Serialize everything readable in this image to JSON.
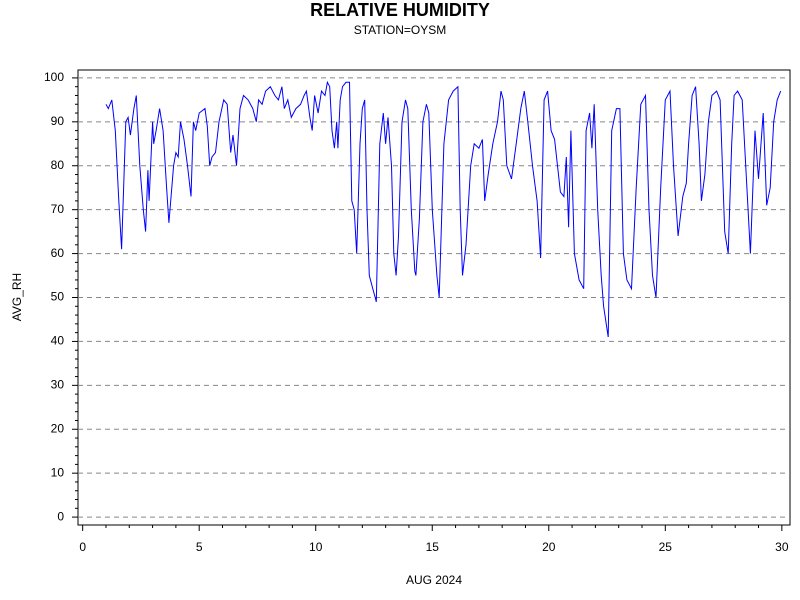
{
  "chart_data": {
    "type": "line",
    "title": "RELATIVE HUMIDITY",
    "subtitle": "STATION=OYSM",
    "x_label": "AUG 2024",
    "y_label": "AVG_RH",
    "xlim": [
      -0.2,
      30.35
    ],
    "ylim": [
      -1.8,
      101.8
    ],
    "xticks": [
      0,
      5,
      10,
      15,
      20,
      25,
      30
    ],
    "yticks": [
      0,
      10,
      20,
      30,
      40,
      50,
      60,
      70,
      80,
      90,
      100
    ],
    "xminorticks": [
      1,
      2,
      3,
      4,
      6,
      7,
      8,
      9,
      11,
      12,
      13,
      14,
      16,
      17,
      18,
      19,
      21,
      22,
      23,
      24,
      26,
      27,
      28,
      29
    ],
    "yminorticks": [
      2,
      4,
      6,
      8,
      12,
      14,
      16,
      18,
      22,
      24,
      26,
      28,
      32,
      34,
      36,
      38,
      42,
      44,
      46,
      48,
      52,
      54,
      56,
      58,
      62,
      64,
      66,
      68,
      72,
      74,
      76,
      78,
      82,
      84,
      86,
      88,
      92,
      94,
      96,
      98
    ],
    "grid": true,
    "series": [
      {
        "name": "AVG_RH",
        "color": "#0000ff",
        "x": [
          1.0,
          1.1,
          1.25,
          1.4,
          1.55,
          1.67,
          1.85,
          1.95,
          2.05,
          2.2,
          2.3,
          2.45,
          2.6,
          2.7,
          2.8,
          2.85,
          3.0,
          3.05,
          3.15,
          3.3,
          3.45,
          3.6,
          3.7,
          3.9,
          4.0,
          4.1,
          4.2,
          4.35,
          4.5,
          4.65,
          4.75,
          4.85,
          5.0,
          5.25,
          5.35,
          5.45,
          5.55,
          5.7,
          5.85,
          6.05,
          6.2,
          6.35,
          6.45,
          6.6,
          6.75,
          6.9,
          7.1,
          7.3,
          7.45,
          7.55,
          7.7,
          7.85,
          8.05,
          8.25,
          8.4,
          8.55,
          8.65,
          8.8,
          8.95,
          9.15,
          9.35,
          9.5,
          9.6,
          9.75,
          9.85,
          9.95,
          10.1,
          10.25,
          10.4,
          10.5,
          10.6,
          10.7,
          10.8,
          10.9,
          10.95,
          11.05,
          11.15,
          11.3,
          11.45,
          11.55,
          11.65,
          11.76,
          11.9,
          12.0,
          12.1,
          12.2,
          12.3,
          12.45,
          12.55,
          12.6,
          12.75,
          12.9,
          13.0,
          13.1,
          13.25,
          13.35,
          13.45,
          13.55,
          13.7,
          13.85,
          13.95,
          14.1,
          14.25,
          14.3,
          14.45,
          14.6,
          14.75,
          14.85,
          15.0,
          15.2,
          15.3,
          15.5,
          15.7,
          15.9,
          16.1,
          16.2,
          16.3,
          16.45,
          16.65,
          16.8,
          17.0,
          17.15,
          17.25,
          17.4,
          17.6,
          17.8,
          17.95,
          18.05,
          18.2,
          18.4,
          18.6,
          18.8,
          18.95,
          19.1,
          19.3,
          19.5,
          19.65,
          19.8,
          19.95,
          20.1,
          20.25,
          20.5,
          20.65,
          20.75,
          20.85,
          20.95,
          21.1,
          21.3,
          21.5,
          21.6,
          21.75,
          21.85,
          21.95,
          22.1,
          22.25,
          22.35,
          22.55,
          22.7,
          22.9,
          23.05,
          23.2,
          23.35,
          23.55,
          23.75,
          23.95,
          24.15,
          24.3,
          24.45,
          24.6,
          24.8,
          25.0,
          25.2,
          25.35,
          25.55,
          25.75,
          25.9,
          26.0,
          26.15,
          26.3,
          26.45,
          26.55,
          26.7,
          26.85,
          27.0,
          27.2,
          27.35,
          27.55,
          27.7,
          27.85,
          27.95,
          28.1,
          28.3,
          28.5,
          28.65,
          28.85,
          29.0,
          29.2,
          29.35,
          29.5,
          29.65,
          29.8,
          29.95
        ],
        "values": [
          94,
          93,
          95,
          88,
          72,
          61,
          90,
          91,
          87,
          93,
          96,
          80,
          70,
          65,
          79,
          72,
          90,
          85,
          88,
          93,
          88,
          75,
          67,
          80,
          83,
          82,
          90,
          86,
          80,
          73,
          90,
          88,
          92,
          93,
          89,
          80,
          82,
          83,
          90,
          95,
          94,
          83,
          87,
          80,
          93,
          96,
          95,
          93,
          90,
          95,
          94,
          97,
          98,
          96,
          95,
          98,
          93,
          95,
          91,
          93,
          94,
          96,
          97,
          91,
          88,
          96,
          92,
          97,
          96,
          99,
          98,
          88,
          84,
          90,
          84,
          95,
          98,
          99,
          99,
          72,
          70,
          60,
          85,
          93,
          95,
          70,
          55,
          52,
          50,
          49,
          85,
          92,
          85,
          91,
          80,
          60,
          55,
          64,
          90,
          95,
          93,
          70,
          56,
          55,
          68,
          90,
          94,
          92,
          70,
          55,
          50,
          85,
          95,
          97,
          98,
          70,
          55,
          62,
          80,
          85,
          84,
          86,
          72,
          78,
          85,
          90,
          97,
          95,
          80,
          77,
          85,
          93,
          97,
          90,
          80,
          72,
          59,
          95,
          97,
          88,
          86,
          74,
          73,
          82,
          66,
          88,
          60,
          54,
          52,
          88,
          92,
          84,
          94,
          70,
          55,
          48,
          41,
          88,
          93,
          93,
          60,
          54,
          52,
          75,
          94,
          96,
          70,
          55,
          50,
          75,
          95,
          97,
          80,
          64,
          73,
          76,
          85,
          96,
          98,
          85,
          72,
          78,
          90,
          96,
          97,
          95,
          65,
          60,
          85,
          96,
          97,
          95,
          75,
          60,
          88,
          77,
          92,
          71,
          75,
          90,
          95,
          97
        ]
      }
    ]
  }
}
